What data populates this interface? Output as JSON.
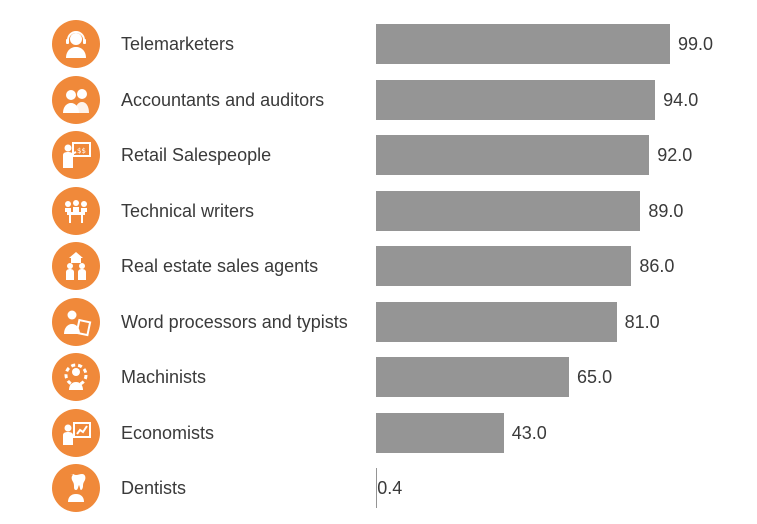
{
  "chart_data": {
    "type": "bar",
    "orientation": "horizontal",
    "title": "",
    "xlabel": "",
    "ylabel": "",
    "categories": [
      "Telemarketers",
      "Accountants and auditors",
      "Retail Salespeople",
      "Technical writers",
      "Real estate sales agents",
      "Word processors and typists",
      "Machinists",
      "Economists",
      "Dentists"
    ],
    "values": [
      99.0,
      94.0,
      92.0,
      89.0,
      86.0,
      81.0,
      65.0,
      43.0,
      0.4
    ],
    "value_labels": [
      "99.0",
      "94.0",
      "92.0",
      "89.0",
      "86.0",
      "81.0",
      "65.0",
      "43.0",
      "0.4"
    ],
    "xlim": [
      0,
      100
    ],
    "grid": false,
    "bar_color": "#959595",
    "icon_color": "#f0893a",
    "icons": [
      "telemarketer-headset-icon",
      "accountants-people-icon",
      "presenter-board-icon",
      "meeting-table-icon",
      "house-family-icon",
      "person-typing-icon",
      "gear-worker-icon",
      "chart-presenter-icon",
      "dentist-tooth-icon"
    ]
  }
}
